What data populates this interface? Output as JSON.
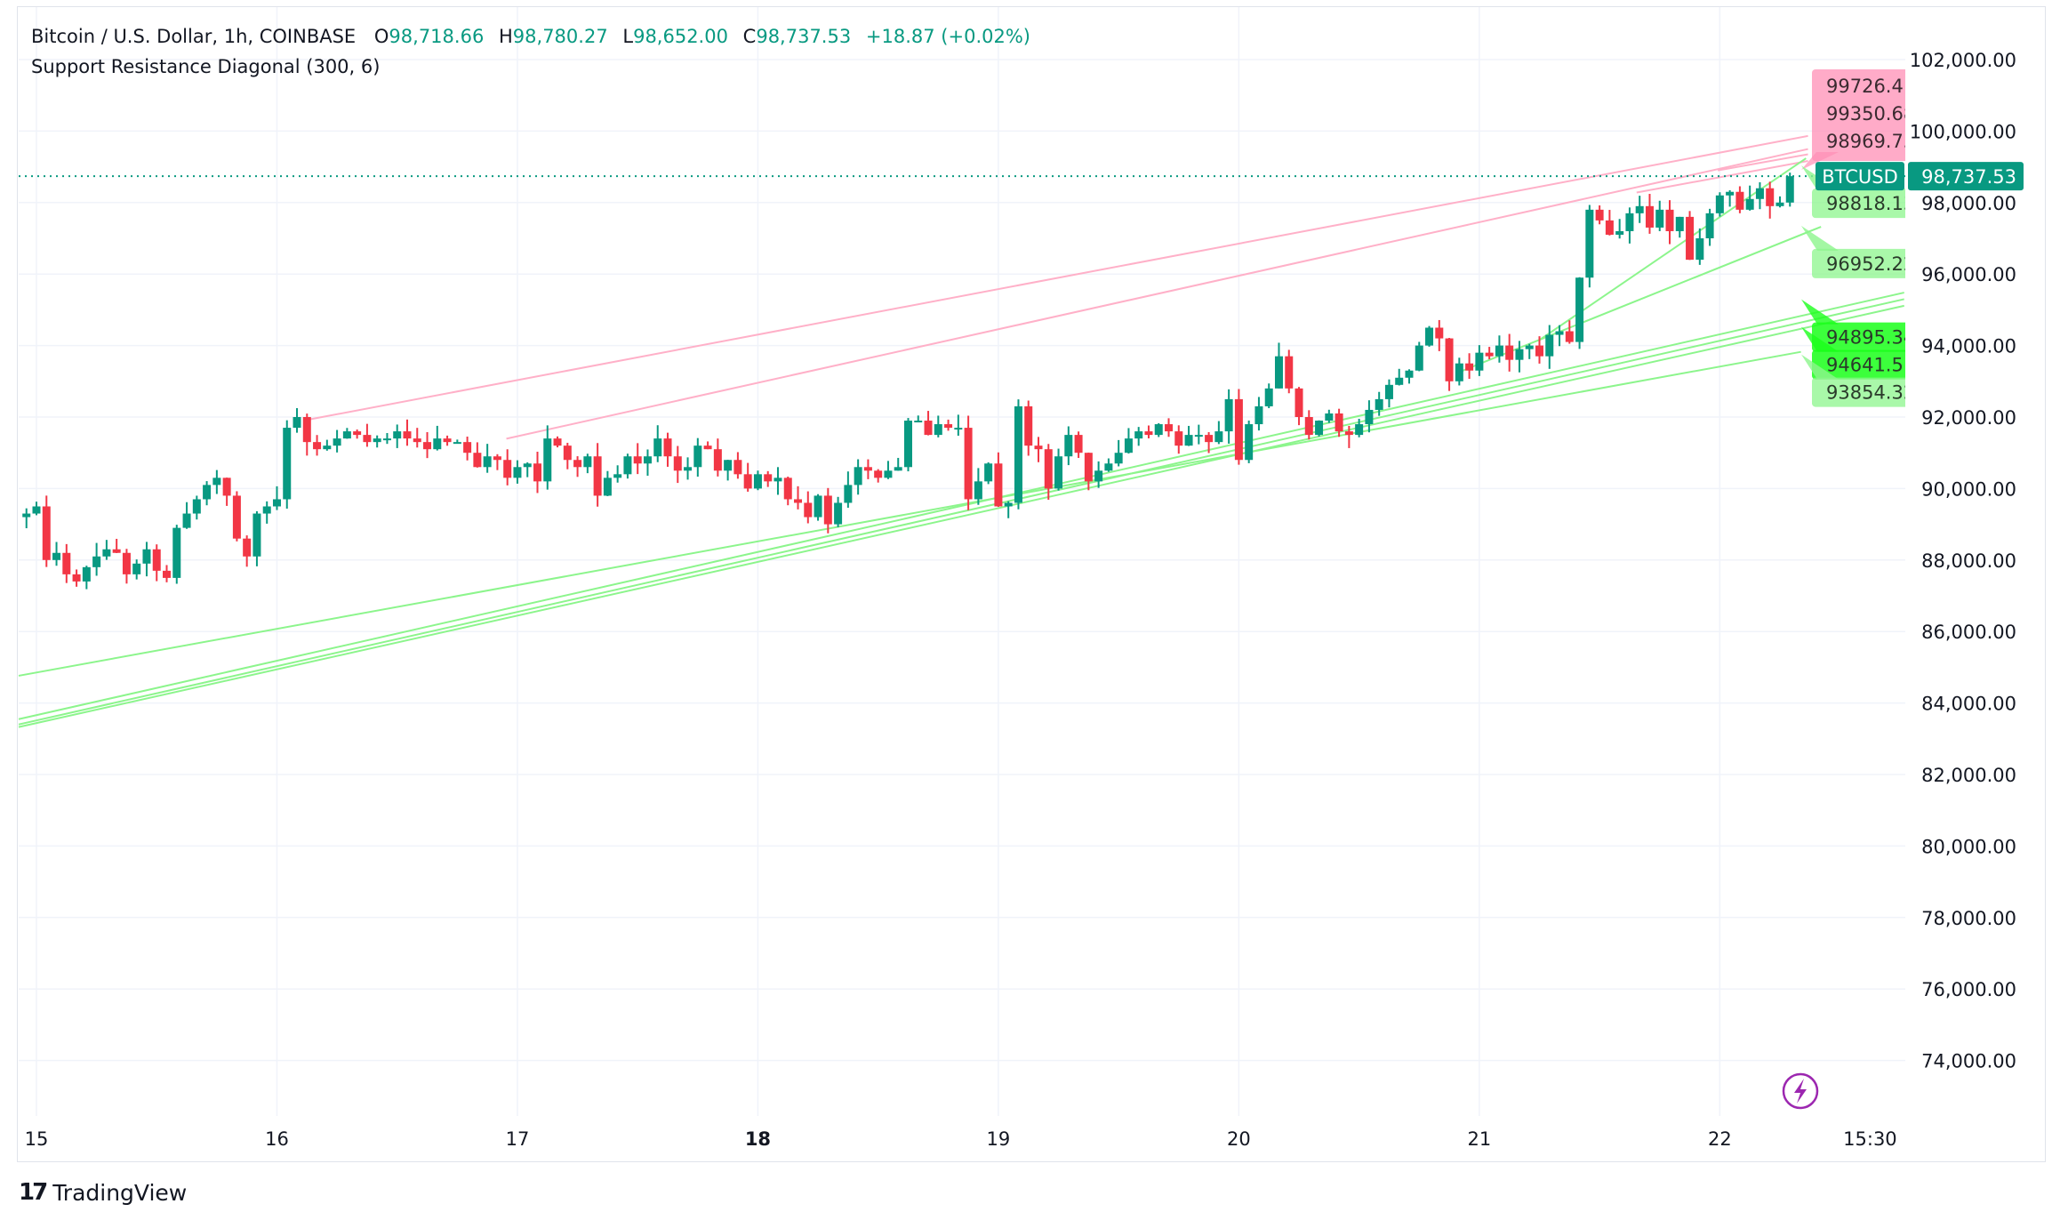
{
  "header": {
    "symbol": "Bitcoin / U.S. Dollar, 1h, COINBASE",
    "o_label": "O",
    "o_value": "98,718.66",
    "h_label": "H",
    "h_value": "98,780.27",
    "l_label": "L",
    "l_value": "98,652.00",
    "c_label": "C",
    "c_value": "98,737.53",
    "change": "+18.87 (+0.02%)",
    "indicator": "Support Resistance Diagonal (300, 6)"
  },
  "branding": {
    "logo_text": "TradingView"
  },
  "price_tag": {
    "symbol": "BTCUSD",
    "value": "98,737.53"
  },
  "colors": {
    "up": "#089981",
    "down": "#f23645",
    "grid": "#f0f3fa",
    "resistance": "#ffb0c8",
    "support": "#8cf58c",
    "support_strong": "#1aff1a",
    "accent": "#9c27b0"
  },
  "chart_data": {
    "type": "candlestick",
    "title": "",
    "interval": "1h",
    "ylim": [
      73000,
      103000
    ],
    "grid": true,
    "y_ticks": [
      "102,000.00",
      "100,000.00",
      "98,000.00",
      "96,000.00",
      "94,000.00",
      "92,000.00",
      "90,000.00",
      "88,000.00",
      "86,000.00",
      "84,000.00",
      "82,000.00",
      "80,000.00",
      "78,000.00",
      "76,000.00",
      "74,000.00"
    ],
    "y_tick_values": [
      102000,
      100000,
      98000,
      96000,
      94000,
      92000,
      90000,
      88000,
      86000,
      84000,
      82000,
      80000,
      78000,
      76000,
      74000
    ],
    "x_ticks": [
      {
        "label": "15",
        "day": 15,
        "hour": 0,
        "bold": false
      },
      {
        "label": "16",
        "day": 16,
        "hour": 0,
        "bold": false
      },
      {
        "label": "17",
        "day": 17,
        "hour": 0,
        "bold": false
      },
      {
        "label": "18",
        "day": 18,
        "hour": 0,
        "bold": true
      },
      {
        "label": "19",
        "day": 19,
        "hour": 0,
        "bold": false
      },
      {
        "label": "20",
        "day": 20,
        "hour": 0,
        "bold": false
      },
      {
        "label": "21",
        "day": 21,
        "hour": 0,
        "bold": false
      },
      {
        "label": "22",
        "day": 22,
        "hour": 0,
        "bold": false
      },
      {
        "label": "15:30",
        "day": 22,
        "hour": 15,
        "bold": false
      }
    ],
    "candles_start": {
      "day": 14,
      "hour": 23
    },
    "first_open": 89200,
    "closes": [
      89300,
      89500,
      88000,
      88200,
      87600,
      87400,
      87800,
      88100,
      88300,
      88200,
      87600,
      87900,
      88300,
      87700,
      87500,
      88900,
      89300,
      89700,
      90100,
      90300,
      89800,
      88600,
      88100,
      89300,
      89500,
      89700,
      91700,
      92000,
      91300,
      91100,
      91200,
      91400,
      91600,
      91500,
      91300,
      91400,
      91400,
      91600,
      91400,
      91300,
      91100,
      91400,
      91300,
      91300,
      91000,
      90600,
      90900,
      90800,
      90300,
      90600,
      90700,
      90200,
      91400,
      91200,
      90800,
      90600,
      90900,
      89800,
      90300,
      90400,
      90900,
      90700,
      90900,
      91400,
      90900,
      90500,
      90600,
      91200,
      91100,
      90500,
      90800,
      90400,
      90000,
      90400,
      90200,
      90300,
      89700,
      89600,
      89200,
      89800,
      89000,
      89600,
      90100,
      90600,
      90500,
      90300,
      90500,
      90600,
      91900,
      91900,
      91500,
      91800,
      91700,
      91700,
      89700,
      90200,
      90700,
      89500,
      89600,
      92300,
      91200,
      91100,
      90000,
      90900,
      91500,
      91000,
      90200,
      90500,
      90700,
      91000,
      91400,
      91600,
      91500,
      91800,
      91600,
      91200,
      91500,
      91500,
      91300,
      91600,
      92500,
      90800,
      91800,
      92300,
      92800,
      93700,
      92800,
      92000,
      91500,
      91900,
      92100,
      91600,
      91500,
      91800,
      92200,
      92500,
      92900,
      93100,
      93300,
      94000,
      94500,
      94200,
      93000,
      93500,
      93300,
      93800,
      93700,
      94000,
      93600,
      93900,
      94000,
      93700,
      94300,
      94400,
      94100,
      95900,
      97800,
      97500,
      97100,
      97200,
      97700,
      97900,
      97300,
      97800,
      97200,
      97600,
      96400,
      97000,
      97700,
      98200,
      98300,
      97800,
      98100,
      98400,
      97900,
      98000,
      98737.53
    ],
    "last_price": 98737.53,
    "resistance_lines": [
      {
        "from": {
          "day": 16,
          "hour": 2.8,
          "price": 91909
        },
        "to": {
          "day": 22,
          "hour": 8.8,
          "price": 99864
        }
      },
      {
        "from": {
          "day": 16,
          "hour": 22.9,
          "price": 91393
        },
        "to": {
          "day": 22,
          "hour": 8.8,
          "price": 99496
        }
      },
      {
        "from": {
          "day": 21,
          "hour": 15.7,
          "price": 98280
        },
        "to": {
          "day": 22,
          "hour": 8.8,
          "price": 99164
        }
      },
      {
        "from": {
          "day": 21,
          "hour": 23.8,
          "price": 98900
        },
        "to": {
          "day": 22,
          "hour": 8.8,
          "price": 99350
        }
      }
    ],
    "support_lines": [
      {
        "from": {
          "day": 14,
          "hour": 22.2,
          "price": 84763
        },
        "to": {
          "day": 22,
          "hour": 8.1,
          "price": 93824
        }
      },
      {
        "from": {
          "day": 14,
          "hour": 22.2,
          "price": 83548
        },
        "to": {
          "day": 22,
          "hour": 18.4,
          "price": 95481
        }
      },
      {
        "from": {
          "day": 14,
          "hour": 22.2,
          "price": 83401
        },
        "to": {
          "day": 22,
          "hour": 18.4,
          "price": 95297
        }
      },
      {
        "from": {
          "day": 14,
          "hour": 22.2,
          "price": 83327
        },
        "to": {
          "day": 22,
          "hour": 18.4,
          "price": 95113
        }
      },
      {
        "from": {
          "day": 20,
          "hour": 22.1,
          "price": 93271
        },
        "to": {
          "day": 22,
          "hour": 10.1,
          "price": 97323
        }
      },
      {
        "from": {
          "day": 21,
          "hour": 6,
          "price": 94155
        },
        "to": {
          "day": 22,
          "hour": 8.6,
          "price": 99238
        }
      }
    ],
    "resistance_labels": [
      "99726.41",
      "99350.68",
      "98969.75"
    ],
    "support_labels": [
      {
        "text": "98818.13",
        "price": 98818.13,
        "strong": false
      },
      {
        "text": "96952.22",
        "price": 96952.22,
        "strong": false
      },
      {
        "text": "94641.51",
        "price": 94641.51,
        "strong": true
      },
      {
        "text": "94895.34",
        "price": 94895.34,
        "strong": true
      },
      {
        "text": "93854.32",
        "price": 93854.32,
        "strong": false
      }
    ]
  }
}
